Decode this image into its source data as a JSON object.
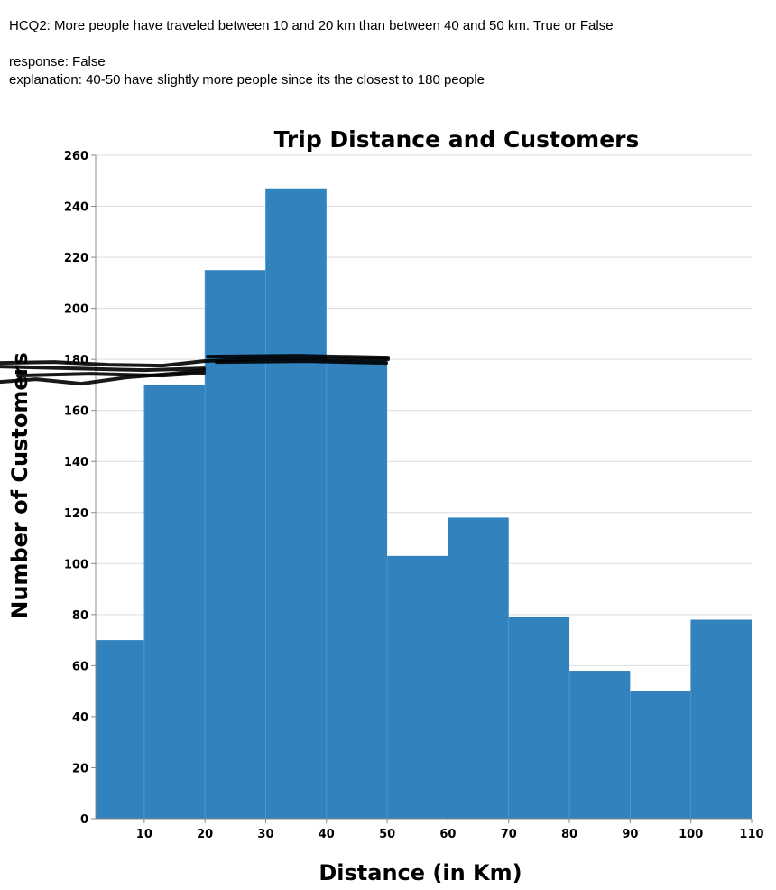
{
  "question": "HCQ2: More people have traveled between 10 and 20 km than between 40 and 50 km. True or False",
  "response": "response: False",
  "explanation": "explanation: 40-50 have slightly more people since its the closest to 180 people",
  "chart_data": {
    "type": "bar",
    "title": "Trip Distance and Customers",
    "xlabel": "Distance (in Km)",
    "ylabel": "Number of Customers",
    "bins": [
      {
        "x0": 2,
        "x1": 10,
        "value": 70
      },
      {
        "x0": 10,
        "x1": 20,
        "value": 170
      },
      {
        "x0": 20,
        "x1": 30,
        "value": 215
      },
      {
        "x0": 30,
        "x1": 40,
        "value": 247
      },
      {
        "x0": 40,
        "x1": 50,
        "value": 180
      },
      {
        "x0": 50,
        "x1": 60,
        "value": 103
      },
      {
        "x0": 60,
        "x1": 70,
        "value": 118
      },
      {
        "x0": 70,
        "x1": 80,
        "value": 79
      },
      {
        "x0": 80,
        "x1": 90,
        "value": 58
      },
      {
        "x0": 90,
        "x1": 100,
        "value": 50
      },
      {
        "x0": 100,
        "x1": 110,
        "value": 78
      }
    ],
    "xlim": [
      2,
      110
    ],
    "ylim": [
      0,
      260
    ],
    "x_ticks": [
      10,
      20,
      30,
      40,
      50,
      60,
      70,
      80,
      90,
      100,
      110
    ],
    "y_ticks": [
      0,
      20,
      40,
      60,
      80,
      100,
      120,
      140,
      160,
      180,
      200,
      220,
      240,
      260
    ],
    "grid": true,
    "bar_color": "#3182bd",
    "grid_color": "#dddddd",
    "annotation": {
      "type": "freehand-line",
      "color": "#000000",
      "y_value": 180
    }
  }
}
